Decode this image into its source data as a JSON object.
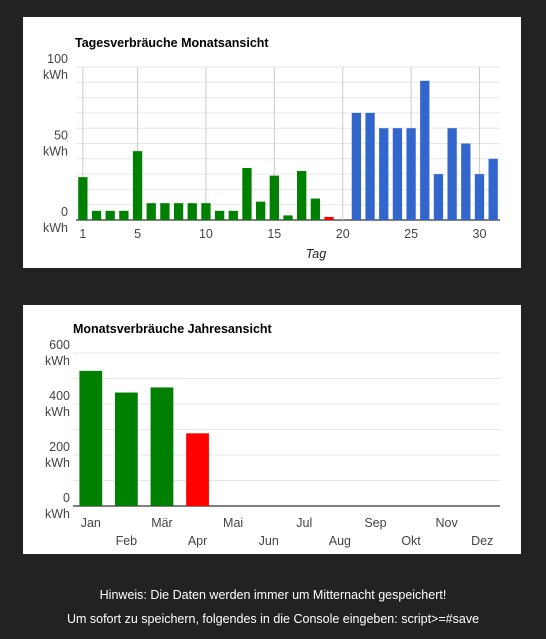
{
  "chart_data": [
    {
      "type": "bar",
      "title": "Tagesverbräuche Monatsansicht",
      "xlabel": "Tag",
      "ylabel": "",
      "ylim": [
        0,
        100
      ],
      "yticks": [
        {
          "value": 100,
          "label": "100 kWh"
        },
        {
          "value": 50,
          "label": "50 kWh"
        },
        {
          "value": 0,
          "label": "0 kWh"
        }
      ],
      "xticks": [
        1,
        5,
        10,
        15,
        20,
        25,
        30
      ],
      "x": [
        1,
        2,
        3,
        4,
        5,
        6,
        7,
        8,
        9,
        10,
        11,
        12,
        13,
        14,
        15,
        16,
        17,
        18,
        19,
        20,
        21,
        22,
        23,
        24,
        25,
        26,
        27,
        28,
        29,
        30,
        31
      ],
      "values": [
        28,
        6,
        6,
        6,
        45,
        11,
        11,
        11,
        11,
        11,
        6,
        6,
        34,
        12,
        29,
        3,
        32,
        14,
        2,
        0,
        70,
        70,
        60,
        60,
        60,
        91,
        30,
        60,
        50,
        30,
        40
      ],
      "colors": [
        "#008000",
        "#008000",
        "#008000",
        "#008000",
        "#008000",
        "#008000",
        "#008000",
        "#008000",
        "#008000",
        "#008000",
        "#008000",
        "#008000",
        "#008000",
        "#008000",
        "#008000",
        "#008000",
        "#008000",
        "#008000",
        "#ff0000",
        "#3366cc",
        "#3366cc",
        "#3366cc",
        "#3366cc",
        "#3366cc",
        "#3366cc",
        "#3366cc",
        "#3366cc",
        "#3366cc",
        "#3366cc",
        "#3366cc",
        "#3366cc"
      ],
      "grid": true
    },
    {
      "type": "bar",
      "title": "Monatsverbräuche Jahresansicht",
      "xlabel": "",
      "ylabel": "",
      "ylim": [
        0,
        600
      ],
      "yticks": [
        {
          "value": 600,
          "label": "600 kWh"
        },
        {
          "value": 400,
          "label": "400 kWh"
        },
        {
          "value": 200,
          "label": "200 kWh"
        },
        {
          "value": 0,
          "label": "0 kWh"
        }
      ],
      "categories": [
        "Jan",
        "Feb",
        "Mär",
        "Apr",
        "Mai",
        "Jun",
        "Jul",
        "Aug",
        "Sep",
        "Okt",
        "Nov",
        "Dez"
      ],
      "values": [
        530,
        445,
        465,
        285,
        0,
        0,
        0,
        0,
        0,
        0,
        0,
        0
      ],
      "colors": [
        "#008000",
        "#008000",
        "#008000",
        "#ff0000",
        "#008000",
        "#008000",
        "#008000",
        "#008000",
        "#008000",
        "#008000",
        "#008000",
        "#008000"
      ],
      "grid": true
    }
  ],
  "notes": {
    "line1": "Hinweis: Die Daten werden immer um Mitternacht gespeichert!",
    "line2": "Um sofort zu speichern, folgendes in die Console eingeben: script>=#save"
  }
}
